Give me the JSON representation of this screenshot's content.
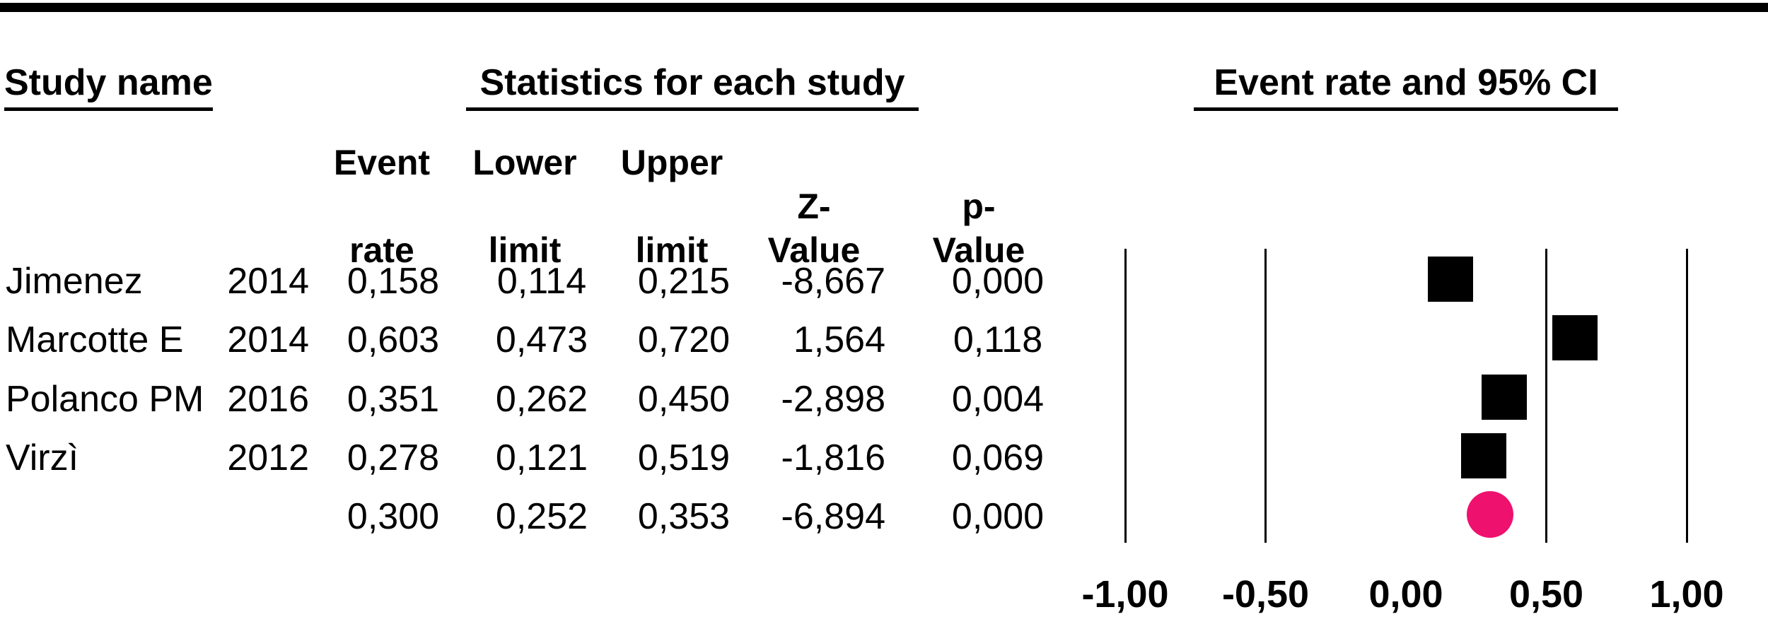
{
  "header": {
    "study_name_title": "Study name",
    "stats_title": "Statistics for each study",
    "plot_title": "Event rate and 95% CI",
    "col_headers": {
      "event": [
        "Event",
        "rate"
      ],
      "lower": [
        "Lower",
        "limit"
      ],
      "upper": [
        "Upper",
        "limit"
      ],
      "z": "Z-Value",
      "p": "p-Value"
    }
  },
  "chart_data": {
    "type": "forest",
    "title": "Event rate and 95% CI",
    "x_axis": {
      "range": [
        -1,
        1
      ],
      "tick_values": [
        -1,
        -0.5,
        0,
        0.5,
        1
      ],
      "tick_labels": [
        "-1,00",
        "-0,50",
        "0,00",
        "0,50",
        "1,00"
      ],
      "gridline_values": [
        -1,
        -0.5,
        0.5,
        1
      ],
      "grid": "vertical-lines-only"
    },
    "decimal_separator": ",",
    "studies": [
      {
        "name": "Jimenez",
        "year": "2014",
        "event_rate": 0.158,
        "lower_limit": 0.114,
        "upper_limit": 0.215,
        "z_value": -8.667,
        "p_value": 0.0,
        "display": {
          "event_rate": "0,158",
          "lower_limit": "0,114",
          "upper_limit": "0,215",
          "z_value": "-8,667",
          "p_value": "0,000"
        }
      },
      {
        "name": "Marcotte E",
        "year": "2014",
        "event_rate": 0.603,
        "lower_limit": 0.473,
        "upper_limit": 0.72,
        "z_value": 1.564,
        "p_value": 0.118,
        "display": {
          "event_rate": "0,603",
          "lower_limit": "0,473",
          "upper_limit": "0,720",
          "z_value": "1,564",
          "p_value": "0,118"
        }
      },
      {
        "name": "Polanco PM",
        "year": "2016",
        "event_rate": 0.351,
        "lower_limit": 0.262,
        "upper_limit": 0.45,
        "z_value": -2.898,
        "p_value": 0.004,
        "display": {
          "event_rate": "0,351",
          "lower_limit": "0,262",
          "upper_limit": "0,450",
          "z_value": "-2,898",
          "p_value": "0,004"
        }
      },
      {
        "name": "Virzì",
        "year": "2012",
        "event_rate": 0.278,
        "lower_limit": 0.121,
        "upper_limit": 0.519,
        "z_value": -1.816,
        "p_value": 0.069,
        "display": {
          "event_rate": "0,278",
          "lower_limit": "0,121",
          "upper_limit": "0,519",
          "z_value": "-1,816",
          "p_value": "0,069"
        }
      }
    ],
    "summary": {
      "name": "",
      "year": "",
      "event_rate": 0.3,
      "lower_limit": 0.252,
      "upper_limit": 0.353,
      "z_value": -6.894,
      "p_value": 0.0,
      "display": {
        "event_rate": "0,300",
        "lower_limit": "0,252",
        "upper_limit": "0,353",
        "z_value": "-6,894",
        "p_value": "0,000"
      }
    },
    "marker_colors": {
      "study": "#000000",
      "summary": "#EF116E"
    },
    "legend_position": "none"
  }
}
